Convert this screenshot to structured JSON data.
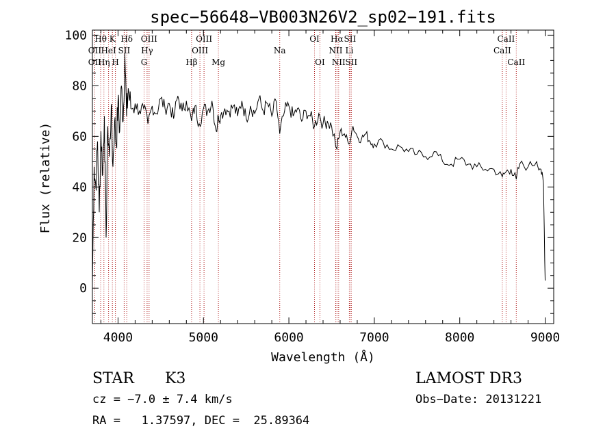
{
  "chart_data": {
    "type": "line",
    "title": "spec−56648−VB003N26V2_sp02−191.fits",
    "xlabel": "Wavelength (Å)",
    "ylabel": "Flux (relative)",
    "xlim": [
      3700,
      9100
    ],
    "ylim": [
      -14,
      102
    ],
    "x_ticks": [
      4000,
      5000,
      6000,
      7000,
      8000,
      9000
    ],
    "x_tick_labels": [
      "4000",
      "5000",
      "6000",
      "7000",
      "8000",
      "9000"
    ],
    "y_ticks": [
      0,
      20,
      40,
      60,
      80,
      100
    ],
    "y_tick_labels": [
      "0",
      "20",
      "40",
      "60",
      "80",
      "100"
    ],
    "series": [
      {
        "name": "spectrum",
        "x": [
          3700,
          3720,
          3740,
          3760,
          3780,
          3800,
          3820,
          3840,
          3860,
          3880,
          3900,
          3920,
          3940,
          3960,
          3980,
          4000,
          4020,
          4040,
          4060,
          4080,
          4100,
          4120,
          4150,
          4200,
          4250,
          4300,
          4350,
          4400,
          4450,
          4500,
          4550,
          4600,
          4650,
          4700,
          4750,
          4800,
          4861,
          4900,
          4950,
          5000,
          5050,
          5100,
          5150,
          5175,
          5200,
          5250,
          5300,
          5350,
          5400,
          5450,
          5500,
          5550,
          5600,
          5650,
          5700,
          5750,
          5800,
          5850,
          5893,
          5950,
          6000,
          6050,
          6100,
          6150,
          6200,
          6250,
          6300,
          6350,
          6400,
          6450,
          6500,
          6563,
          6600,
          6650,
          6700,
          6750,
          6800,
          6850,
          6900,
          6950,
          7000,
          7100,
          7200,
          7300,
          7400,
          7500,
          7600,
          7700,
          7800,
          7900,
          8000,
          8100,
          8200,
          8300,
          8400,
          8498,
          8542,
          8600,
          8662,
          8700,
          8800,
          8900,
          8950,
          8980,
          9000
        ],
        "values": [
          2,
          48,
          40,
          58,
          30,
          62,
          45,
          68,
          20,
          64,
          52,
          72,
          48,
          66,
          57,
          74,
          62,
          80,
          66,
          93,
          68,
          79,
          71,
          73,
          70,
          71,
          65,
          72,
          69,
          75,
          71,
          73,
          67,
          76,
          70,
          74,
          66,
          72,
          65,
          71,
          70,
          74,
          62,
          68,
          68,
          71,
          70,
          72,
          68,
          74,
          67,
          72,
          69,
          75,
          70,
          73,
          68,
          74,
          61,
          70,
          72,
          68,
          71,
          66,
          70,
          68,
          64,
          69,
          65,
          66,
          64,
          55,
          62,
          61,
          57,
          64,
          60,
          59,
          61,
          58,
          57,
          58,
          55,
          56,
          54,
          53,
          52,
          54,
          50,
          49,
          51,
          49,
          48,
          47,
          47,
          44,
          46,
          47,
          43,
          49,
          48,
          50,
          47,
          41,
          3
        ]
      }
    ],
    "line_markers": [
      {
        "label": "Hθ",
        "wave": 3797,
        "row": 1
      },
      {
        "label": "OII",
        "wave": 3727,
        "row": 2
      },
      {
        "label": "OII",
        "wave": 3727,
        "row": 3
      },
      {
        "label": "Hη",
        "wave": 3835,
        "row": 3
      },
      {
        "label": "HeI",
        "wave": 3889,
        "row": 2
      },
      {
        "label": "K",
        "wave": 3934,
        "row": 1
      },
      {
        "label": "SII",
        "wave": 4072,
        "row": 2
      },
      {
        "label": "H",
        "wave": 3969,
        "row": 3
      },
      {
        "label": "Hδ",
        "wave": 4102,
        "row": 1
      },
      {
        "label": "OIII",
        "wave": 4363,
        "row": 1
      },
      {
        "label": "Hγ",
        "wave": 4340,
        "row": 2
      },
      {
        "label": "G",
        "wave": 4305,
        "row": 3
      },
      {
        "label": "Hβ",
        "wave": 4861,
        "row": 3
      },
      {
        "label": "OIII",
        "wave": 5007,
        "row": 1
      },
      {
        "label": "OIII",
        "wave": 4959,
        "row": 2
      },
      {
        "label": "Mg",
        "wave": 5175,
        "row": 3
      },
      {
        "label": "Na",
        "wave": 5893,
        "row": 2
      },
      {
        "label": "OI",
        "wave": 6300,
        "row": 1
      },
      {
        "label": "OI",
        "wave": 6363,
        "row": 3
      },
      {
        "label": "Hα",
        "wave": 6563,
        "row": 1
      },
      {
        "label": "NII",
        "wave": 6548,
        "row": 2
      },
      {
        "label": "NII",
        "wave": 6583,
        "row": 3
      },
      {
        "label": "SII",
        "wave": 6716,
        "row": 1
      },
      {
        "label": "Li",
        "wave": 6708,
        "row": 2
      },
      {
        "label": "SII",
        "wave": 6731,
        "row": 3
      },
      {
        "label": "CaII",
        "wave": 8542,
        "row": 1
      },
      {
        "label": "CaII",
        "wave": 8498,
        "row": 2
      },
      {
        "label": "CaII",
        "wave": 8662,
        "row": 3
      }
    ],
    "marker_waves": [
      3727,
      3797,
      3835,
      3889,
      3934,
      3969,
      4072,
      4102,
      4305,
      4340,
      4363,
      4861,
      4959,
      5007,
      5175,
      5893,
      6300,
      6363,
      6548,
      6563,
      6583,
      6708,
      6716,
      6731,
      8498,
      8542,
      8662
    ]
  },
  "info": {
    "object_class": "STAR",
    "subclass": "K3",
    "survey": "LAMOST DR3",
    "cz": "cz = −7.0 ± 7.4 km/s",
    "obs_date": "Obs−Date: 20131221",
    "coords": "RA =   1.37597, DEC =  25.89364"
  },
  "colors": {
    "marker": "#b22222",
    "line": "#000000",
    "background": "#ffffff"
  }
}
